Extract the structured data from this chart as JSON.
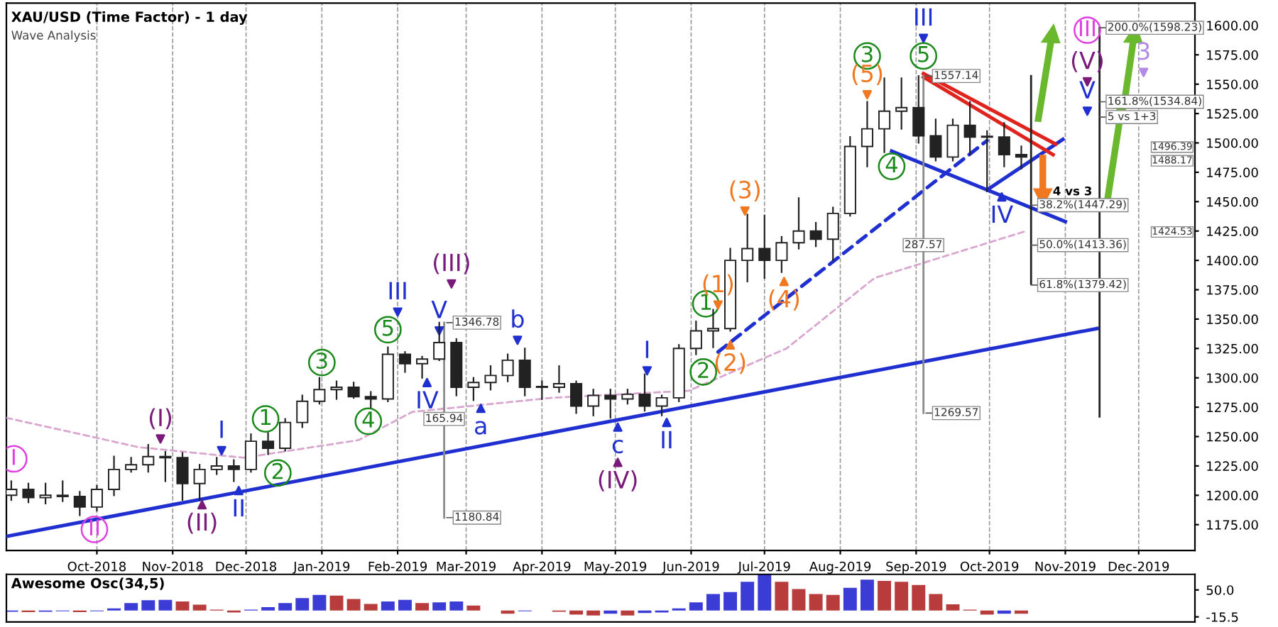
{
  "chart_data": [
    {
      "type": "candlestick",
      "title": "XAU/USD (Time Factor) - 1 day",
      "subtitle": "Wave Analysis",
      "color": "#222222",
      "x": [
        "2018-08-27",
        "2018-09-03",
        "2018-09-10",
        "2018-09-17",
        "2018-09-24",
        "2018-10-01",
        "2018-10-08",
        "2018-10-15",
        "2018-10-22",
        "2018-10-29",
        "2018-11-05",
        "2018-11-12",
        "2018-11-19",
        "2018-11-26",
        "2018-12-03",
        "2018-12-10",
        "2018-12-17",
        "2018-12-24",
        "2018-12-31",
        "2019-01-07",
        "2019-01-14",
        "2019-01-21",
        "2019-01-28",
        "2019-02-04",
        "2019-02-11",
        "2019-02-18",
        "2019-02-25",
        "2019-03-04",
        "2019-03-11",
        "2019-03-18",
        "2019-03-25",
        "2019-04-01",
        "2019-04-08",
        "2019-04-15",
        "2019-04-22",
        "2019-04-29",
        "2019-05-06",
        "2019-05-13",
        "2019-05-20",
        "2019-05-27",
        "2019-06-03",
        "2019-06-10",
        "2019-06-17",
        "2019-06-24",
        "2019-07-01",
        "2019-07-08",
        "2019-07-15",
        "2019-07-22",
        "2019-07-29",
        "2019-08-05",
        "2019-08-12",
        "2019-08-19",
        "2019-08-26",
        "2019-09-02",
        "2019-09-09",
        "2019-09-16",
        "2019-09-23",
        "2019-09-30",
        "2019-10-07",
        "2019-10-14"
      ],
      "ohlc": [
        [
          1200,
          1212,
          1196,
          1205
        ],
        [
          1205,
          1210,
          1194,
          1198
        ],
        [
          1198,
          1210,
          1193,
          1200
        ],
        [
          1200,
          1212,
          1195,
          1199
        ],
        [
          1199,
          1203,
          1183,
          1190
        ],
        [
          1190,
          1208,
          1187,
          1205
        ],
        [
          1205,
          1233,
          1200,
          1222
        ],
        [
          1222,
          1232,
          1220,
          1226
        ],
        [
          1226,
          1243,
          1220,
          1233
        ],
        [
          1233,
          1237,
          1212,
          1232
        ],
        [
          1232,
          1236,
          1196,
          1210
        ],
        [
          1210,
          1226,
          1196,
          1222
        ],
        [
          1222,
          1232,
          1218,
          1225
        ],
        [
          1225,
          1230,
          1212,
          1222
        ],
        [
          1222,
          1252,
          1220,
          1246
        ],
        [
          1246,
          1253,
          1235,
          1240
        ],
        [
          1240,
          1265,
          1238,
          1262
        ],
        [
          1262,
          1285,
          1258,
          1280
        ],
        [
          1280,
          1300,
          1278,
          1290
        ],
        [
          1290,
          1297,
          1282,
          1292
        ],
        [
          1292,
          1296,
          1283,
          1284
        ],
        [
          1284,
          1288,
          1275,
          1282
        ],
        [
          1282,
          1326,
          1280,
          1320
        ],
        [
          1320,
          1322,
          1305,
          1312
        ],
        [
          1312,
          1318,
          1300,
          1316
        ],
        [
          1316,
          1347,
          1315,
          1330
        ],
        [
          1330,
          1333,
          1285,
          1292
        ],
        [
          1292,
          1300,
          1281,
          1296
        ],
        [
          1296,
          1310,
          1290,
          1302
        ],
        [
          1302,
          1320,
          1297,
          1315
        ],
        [
          1315,
          1325,
          1285,
          1292
        ],
        [
          1292,
          1297,
          1282,
          1292
        ],
        [
          1292,
          1310,
          1288,
          1295
        ],
        [
          1295,
          1297,
          1270,
          1276
        ],
        [
          1276,
          1290,
          1268,
          1285
        ],
        [
          1285,
          1290,
          1266,
          1282
        ],
        [
          1282,
          1290,
          1278,
          1286
        ],
        [
          1286,
          1303,
          1272,
          1276
        ],
        [
          1276,
          1285,
          1268,
          1283
        ],
        [
          1283,
          1328,
          1280,
          1325
        ],
        [
          1325,
          1348,
          1320,
          1340
        ],
        [
          1340,
          1358,
          1326,
          1342
        ],
        [
          1342,
          1410,
          1340,
          1400
        ],
        [
          1400,
          1439,
          1382,
          1410
        ],
        [
          1410,
          1438,
          1385,
          1400
        ],
        [
          1400,
          1420,
          1390,
          1415
        ],
        [
          1415,
          1453,
          1410,
          1425
        ],
        [
          1425,
          1432,
          1412,
          1418
        ],
        [
          1418,
          1445,
          1400,
          1440
        ],
        [
          1440,
          1505,
          1438,
          1497
        ],
        [
          1497,
          1535,
          1480,
          1512
        ],
        [
          1512,
          1555,
          1492,
          1527
        ],
        [
          1527,
          1555,
          1512,
          1530
        ],
        [
          1530,
          1557,
          1500,
          1506
        ],
        [
          1506,
          1520,
          1485,
          1488
        ],
        [
          1488,
          1520,
          1485,
          1515
        ],
        [
          1515,
          1535,
          1490,
          1505
        ],
        [
          1505,
          1510,
          1459,
          1505
        ],
        [
          1505,
          1517,
          1480,
          1490
        ],
        [
          1490,
          1497,
          1478,
          1488
        ]
      ],
      "xlim": [
        "2018-08-25",
        "2019-12-24"
      ],
      "xticks": [
        {
          "value": "2018-10-01",
          "label": "Oct-2018"
        },
        {
          "value": "2018-11-01",
          "label": "Nov-2018"
        },
        {
          "value": "2018-12-01",
          "label": "Dec-2018"
        },
        {
          "value": "2019-01-01",
          "label": "Jan-2019"
        },
        {
          "value": "2019-02-01",
          "label": "Feb-2019"
        },
        {
          "value": "2019-03-01",
          "label": "Mar-2019"
        },
        {
          "value": "2019-04-01",
          "label": "Apr-2019"
        },
        {
          "value": "2019-05-01",
          "label": "May-2019"
        },
        {
          "value": "2019-06-01",
          "label": "Jun-2019"
        },
        {
          "value": "2019-07-01",
          "label": "Jul-2019"
        },
        {
          "value": "2019-08-01",
          "label": "Aug-2019"
        },
        {
          "value": "2019-09-01",
          "label": "Sep-2019"
        },
        {
          "value": "2019-10-01",
          "label": "Oct-2019"
        },
        {
          "value": "2019-11-01",
          "label": "Nov-2019"
        },
        {
          "value": "2019-12-01",
          "label": "Dec-2019"
        }
      ],
      "ylim": [
        1153,
        1619
      ],
      "yticks": [
        {
          "value": 1175,
          "label": "1175.00"
        },
        {
          "value": 1200,
          "label": "1200.00"
        },
        {
          "value": 1225,
          "label": "1225.00"
        },
        {
          "value": 1250,
          "label": "1250.00"
        },
        {
          "value": 1275,
          "label": "1275.00"
        },
        {
          "value": 1300,
          "label": "1300.00"
        },
        {
          "value": 1325,
          "label": "1325.00"
        },
        {
          "value": 1350,
          "label": "1350.00"
        },
        {
          "value": 1375,
          "label": "1375.00"
        },
        {
          "value": 1400,
          "label": "1400.00"
        },
        {
          "value": 1425,
          "label": "1425.00"
        },
        {
          "value": 1450,
          "label": "1450.00"
        },
        {
          "value": 1475,
          "label": "1475.00"
        },
        {
          "value": 1500,
          "label": "1500.00"
        },
        {
          "value": 1525,
          "label": "1525.00"
        },
        {
          "value": 1550,
          "label": "1550.00"
        },
        {
          "value": 1575,
          "label": "1575.00"
        },
        {
          "value": 1600,
          "label": "1600.00"
        }
      ],
      "grid": "x",
      "series": [
        {
          "type": "line",
          "color": "#d9a6cf",
          "line_style": "dashed",
          "x": [
            "2018-08-25",
            "2018-10-18",
            "2018-11-30",
            "2019-01-16",
            "2019-02-07",
            "2019-04-05",
            "2019-05-31",
            "2019-07-10",
            "2019-08-15",
            "2019-10-16"
          ],
          "values": [
            1266,
            1241,
            1232,
            1247,
            1271,
            1283,
            1289,
            1325,
            1385,
            1425
          ]
        },
        {
          "type": "line",
          "color": "#1f2fd0",
          "line_style": "solid",
          "x": [
            "2018-08-25",
            "2019-11-14"
          ],
          "values": [
            1165,
            1342
          ]
        },
        {
          "type": "line",
          "color": "#1f2fd0",
          "line_style": "dashed",
          "x": [
            "2019-06-12",
            "2019-09-30"
          ],
          "values": [
            1322,
            1502
          ]
        },
        {
          "type": "line",
          "color": "#1f2fd0",
          "line_style": "solid",
          "x": [
            "2019-08-22",
            "2019-11-01"
          ],
          "values": [
            1493,
            1433
          ]
        },
        {
          "type": "line",
          "color": "#1f2fd0",
          "line_style": "solid",
          "x": [
            "2019-09-30",
            "2019-10-31"
          ],
          "values": [
            1460,
            1503
          ]
        },
        {
          "type": "line",
          "color": "#e0231c",
          "line_style": "solid",
          "x": [
            "2019-09-04",
            "2019-10-28"
          ],
          "values": [
            1559,
            1499
          ]
        },
        {
          "type": "line",
          "color": "#e0231c",
          "line_style": "solid",
          "x": [
            "2019-09-04",
            "2019-10-27"
          ],
          "values": [
            1556,
            1490
          ]
        },
        {
          "type": "line",
          "color": "#8a8a8a",
          "line_style": "solid",
          "x": [
            "2019-02-20",
            "2019-02-20"
          ],
          "values": [
            1347,
            1181
          ]
        },
        {
          "type": "line",
          "color": "#8a8a8a",
          "line_style": "solid",
          "x": [
            "2019-09-04",
            "2019-09-04"
          ],
          "values": [
            1557,
            1270
          ]
        },
        {
          "type": "line",
          "color": "#222222",
          "line_style": "solid",
          "x": [
            "2019-10-18",
            "2019-10-18"
          ],
          "values": [
            1557,
            1380
          ]
        },
        {
          "type": "line",
          "color": "#222222",
          "line_style": "solid",
          "x": [
            "2019-11-15",
            "2019-11-15"
          ],
          "values": [
            1598,
            1267
          ]
        },
        {
          "type": "scatter",
          "name": "I",
          "color": "#1f2fd0",
          "marker": "triangle",
          "x": [
            "2018-11-21"
          ],
          "values": [
            1238
          ]
        },
        {
          "type": "scatter",
          "name": "II",
          "color": "#1f2fd0",
          "marker": "triangle",
          "x": [
            "2018-11-28"
          ],
          "values": [
            1204
          ]
        },
        {
          "type": "scatter",
          "name": "III",
          "color": "#1f2fd0",
          "marker": "triangle",
          "x": [
            "2019-02-01"
          ],
          "values": [
            1356
          ]
        },
        {
          "type": "scatter",
          "name": "IV",
          "color": "#1f2fd0",
          "marker": "triangle",
          "x": [
            "2019-02-13"
          ],
          "values": [
            1296
          ]
        },
        {
          "type": "scatter",
          "name": "V",
          "color": "#1f2fd0",
          "marker": "triangle",
          "x": [
            "2019-02-18"
          ],
          "values": [
            1340
          ]
        },
        {
          "type": "scatter",
          "name": "a",
          "color": "#1f2fd0",
          "marker": "triangle",
          "x": [
            "2019-03-07"
          ],
          "values": [
            1274
          ]
        },
        {
          "type": "scatter",
          "name": "b",
          "color": "#1f2fd0",
          "marker": "triangle",
          "x": [
            "2019-03-22"
          ],
          "values": [
            1332
          ]
        },
        {
          "type": "scatter",
          "name": "c",
          "color": "#1f2fd0",
          "marker": "triangle",
          "x": [
            "2019-05-02"
          ],
          "values": [
            1258
          ]
        },
        {
          "type": "scatter",
          "name": "I",
          "color": "#1f2fd0",
          "marker": "triangle",
          "x": [
            "2019-05-14"
          ],
          "values": [
            1306
          ]
        },
        {
          "type": "scatter",
          "name": "II",
          "color": "#1f2fd0",
          "marker": "triangle",
          "x": [
            "2019-05-22"
          ],
          "values": [
            1262
          ]
        },
        {
          "type": "scatter",
          "name": "III",
          "color": "#1f2fd0",
          "marker": "triangle",
          "x": [
            "2019-09-04"
          ],
          "values": [
            1589
          ]
        },
        {
          "type": "scatter",
          "name": "IV",
          "color": "#1f2fd0",
          "marker": "triangle",
          "x": [
            "2019-10-06"
          ],
          "values": [
            1454
          ]
        },
        {
          "type": "scatter",
          "name": "V",
          "color": "#1f2fd0",
          "marker": "triangle",
          "x": [
            "2019-11-10"
          ],
          "values": [
            1527
          ]
        },
        {
          "type": "scatter",
          "name": "(I)",
          "color": "#7a1a7a",
          "marker": "triangle",
          "x": [
            "2018-10-27"
          ],
          "values": [
            1248
          ]
        },
        {
          "type": "scatter",
          "name": "(II)",
          "color": "#7a1a7a",
          "marker": "triangle",
          "x": [
            "2018-11-13"
          ],
          "values": [
            1192
          ]
        },
        {
          "type": "scatter",
          "name": "(III)",
          "color": "#7a1a7a",
          "marker": "triangle",
          "x": [
            "2019-02-23"
          ],
          "values": [
            1380
          ]
        },
        {
          "type": "scatter",
          "name": "(IV)",
          "color": "#7a1a7a",
          "marker": "triangle",
          "x": [
            "2019-05-02"
          ],
          "values": [
            1228
          ]
        },
        {
          "type": "scatter",
          "name": "(V)",
          "color": "#7a1a7a",
          "marker": "triangle",
          "x": [
            "2019-11-10"
          ],
          "values": [
            1552
          ]
        },
        {
          "type": "scatter",
          "name": "I",
          "color": "#e040e0",
          "marker": "circle",
          "x": [
            "2018-08-28"
          ],
          "values": [
            1231
          ]
        },
        {
          "type": "scatter",
          "name": "II",
          "color": "#e040e0",
          "marker": "circle",
          "x": [
            "2018-09-30"
          ],
          "values": [
            1171
          ]
        },
        {
          "type": "scatter",
          "name": "III",
          "color": "#e040e0",
          "marker": "circle",
          "x": [
            "2019-11-10"
          ],
          "values": [
            1596
          ]
        },
        {
          "type": "scatter",
          "name": "3",
          "color": "#b38be6",
          "marker": "triangle",
          "x": [
            "2019-12-03"
          ],
          "values": [
            1560
          ]
        },
        {
          "type": "scatter",
          "name": "1",
          "color": "#1a8a1a",
          "marker": "circle",
          "x": [
            "2018-12-09"
          ],
          "values": [
            1265
          ]
        },
        {
          "type": "scatter",
          "name": "2",
          "color": "#1a8a1a",
          "marker": "circle",
          "x": [
            "2018-12-14"
          ],
          "values": [
            1219
          ]
        },
        {
          "type": "scatter",
          "name": "3",
          "color": "#1a8a1a",
          "marker": "circle",
          "x": [
            "2019-01-01"
          ],
          "values": [
            1313
          ]
        },
        {
          "type": "scatter",
          "name": "4",
          "color": "#1a8a1a",
          "marker": "circle",
          "x": [
            "2019-01-20"
          ],
          "values": [
            1263
          ]
        },
        {
          "type": "scatter",
          "name": "5",
          "color": "#1a8a1a",
          "marker": "circle",
          "x": [
            "2019-01-28"
          ],
          "values": [
            1341
          ]
        },
        {
          "type": "scatter",
          "name": "1",
          "color": "#1a8a1a",
          "marker": "circle",
          "x": [
            "2019-06-07"
          ],
          "values": [
            1363
          ]
        },
        {
          "type": "scatter",
          "name": "2",
          "color": "#1a8a1a",
          "marker": "circle",
          "x": [
            "2019-06-06"
          ],
          "values": [
            1305
          ]
        },
        {
          "type": "scatter",
          "name": "3",
          "color": "#1a8a1a",
          "marker": "circle",
          "x": [
            "2019-08-12"
          ],
          "values": [
            1574
          ]
        },
        {
          "type": "scatter",
          "name": "4",
          "color": "#1a8a1a",
          "marker": "circle",
          "x": [
            "2019-08-22"
          ],
          "values": [
            1480
          ]
        },
        {
          "type": "scatter",
          "name": "5",
          "color": "#1a8a1a",
          "marker": "circle",
          "x": [
            "2019-09-04"
          ],
          "values": [
            1574
          ]
        },
        {
          "type": "scatter",
          "name": "(1)",
          "color": "#f07820",
          "marker": "triangle",
          "x": [
            "2019-06-12"
          ],
          "values": [
            1362
          ]
        },
        {
          "type": "scatter",
          "name": "(2)",
          "color": "#f07820",
          "marker": "triangle",
          "x": [
            "2019-06-17"
          ],
          "values": [
            1328
          ]
        },
        {
          "type": "scatter",
          "name": "(3)",
          "color": "#f07820",
          "marker": "triangle",
          "x": [
            "2019-06-23"
          ],
          "values": [
            1442
          ]
        },
        {
          "type": "scatter",
          "name": "(4)",
          "color": "#f07820",
          "marker": "triangle",
          "x": [
            "2019-07-09"
          ],
          "values": [
            1382
          ]
        },
        {
          "type": "scatter",
          "name": "(5)",
          "color": "#f07820",
          "marker": "triangle",
          "x": [
            "2019-08-12"
          ],
          "values": [
            1541
          ]
        }
      ],
      "annotations": [
        {
          "text": "1346.78",
          "x": "2019-02-21",
          "y": 1347
        },
        {
          "text": "1180.84",
          "x": "2019-02-21",
          "y": 1181
        },
        {
          "text": "165.94",
          "x": "2019-02-20",
          "y": 1265
        },
        {
          "text": "1557.14",
          "x": "2019-09-05",
          "y": 1557
        },
        {
          "text": "287.57",
          "x": "2019-09-04",
          "y": 1413
        },
        {
          "text": "1269.57",
          "x": "2019-09-05",
          "y": 1270
        },
        {
          "text": "38.2%(1447.29)",
          "x": "2019-10-18",
          "y": 1447
        },
        {
          "text": "50.0%(1413.36)",
          "x": "2019-10-18",
          "y": 1413
        },
        {
          "text": "61.8%(1379.42)",
          "x": "2019-10-18",
          "y": 1379
        },
        {
          "text": "161.8%(1534.84)",
          "x": "2019-11-15",
          "y": 1535
        },
        {
          "text": "200.0%(1598.23)",
          "x": "2019-11-15",
          "y": 1598
        },
        "4 vs 3",
        {
          "text": "5 vs 1+3",
          "x": "2019-11-15",
          "y": 1522
        },
        "1496.39",
        "1488.17",
        "1424.53"
      ]
    },
    {
      "type": "bar",
      "title": "Awesome Osc(34,5)",
      "x": [
        "2018-08-27",
        "2018-09-03",
        "2018-09-10",
        "2018-09-17",
        "2018-09-24",
        "2018-10-01",
        "2018-10-08",
        "2018-10-15",
        "2018-10-22",
        "2018-10-29",
        "2018-11-05",
        "2018-11-12",
        "2018-11-19",
        "2018-11-26",
        "2018-12-03",
        "2018-12-10",
        "2018-12-17",
        "2018-12-24",
        "2018-12-31",
        "2019-01-07",
        "2019-01-14",
        "2019-01-21",
        "2019-01-28",
        "2019-02-04",
        "2019-02-11",
        "2019-02-18",
        "2019-02-25",
        "2019-03-04",
        "2019-03-11",
        "2019-03-18",
        "2019-03-25",
        "2019-04-01",
        "2019-04-08",
        "2019-04-15",
        "2019-04-22",
        "2019-04-29",
        "2019-05-06",
        "2019-05-13",
        "2019-05-20",
        "2019-05-27",
        "2019-06-03",
        "2019-06-10",
        "2019-06-17",
        "2019-06-24",
        "2019-07-01",
        "2019-07-08",
        "2019-07-15",
        "2019-07-22",
        "2019-07-29",
        "2019-08-05",
        "2019-08-12",
        "2019-08-19",
        "2019-08-26",
        "2019-09-02",
        "2019-09-09",
        "2019-09-16",
        "2019-09-23",
        "2019-09-30",
        "2019-10-07",
        "2019-10-14"
      ],
      "values": [
        -3,
        -4,
        -3,
        -2,
        -4,
        -2,
        5,
        18,
        25,
        26,
        22,
        14,
        2,
        -5,
        2,
        8,
        18,
        30,
        38,
        36,
        28,
        16,
        22,
        26,
        18,
        20,
        22,
        12,
        0,
        -8,
        -2,
        0,
        -3,
        -10,
        -12,
        -8,
        -12,
        -6,
        -5,
        5,
        20,
        40,
        45,
        70,
        88,
        70,
        52,
        40,
        38,
        55,
        75,
        72,
        70,
        62,
        40,
        15,
        2,
        -10,
        -8,
        -8
      ],
      "colors": [
        "#3b3bd6",
        "#b83c3c",
        "#3b3bd6",
        "#3b3bd6",
        "#b83c3c",
        "#3b3bd6",
        "#3b3bd6",
        "#3b3bd6",
        "#3b3bd6",
        "#3b3bd6",
        "#b83c3c",
        "#b83c3c",
        "#b83c3c",
        "#b83c3c",
        "#3b3bd6",
        "#3b3bd6",
        "#3b3bd6",
        "#3b3bd6",
        "#3b3bd6",
        "#b83c3c",
        "#b83c3c",
        "#b83c3c",
        "#3b3bd6",
        "#3b3bd6",
        "#b83c3c",
        "#3b3bd6",
        "#3b3bd6",
        "#b83c3c",
        "#b83c3c",
        "#b83c3c",
        "#3b3bd6",
        "#3b3bd6",
        "#b83c3c",
        "#b83c3c",
        "#b83c3c",
        "#3b3bd6",
        "#b83c3c",
        "#3b3bd6",
        "#3b3bd6",
        "#3b3bd6",
        "#3b3bd6",
        "#3b3bd6",
        "#3b3bd6",
        "#3b3bd6",
        "#3b3bd6",
        "#b83c3c",
        "#b83c3c",
        "#b83c3c",
        "#b83c3c",
        "#3b3bd6",
        "#3b3bd6",
        "#b83c3c",
        "#b83c3c",
        "#b83c3c",
        "#b83c3c",
        "#b83c3c",
        "#b83c3c",
        "#b83c3c",
        "#3b3bd6",
        "#b83c3c"
      ],
      "xlim": [
        "2018-08-25",
        "2019-12-24"
      ],
      "ylim": [
        -28,
        88
      ],
      "yticks": [
        {
          "value": 50,
          "label": "50.0"
        },
        {
          "value": -15.5,
          "label": "-15.5"
        }
      ],
      "grid": "x",
      "tick_labels": "y"
    }
  ]
}
